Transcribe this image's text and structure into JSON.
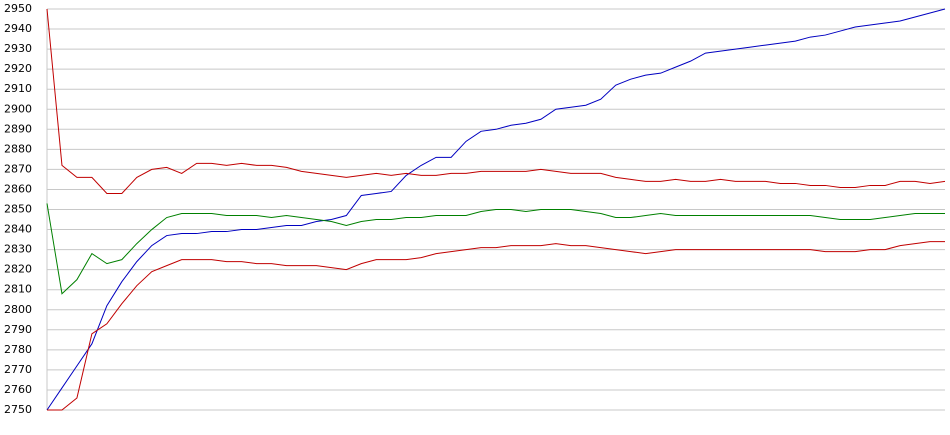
{
  "chart_data": {
    "type": "line",
    "ylim": [
      2750,
      2950
    ],
    "yticks": [
      2750,
      2760,
      2770,
      2780,
      2790,
      2800,
      2810,
      2820,
      2830,
      2840,
      2850,
      2860,
      2870,
      2880,
      2890,
      2900,
      2910,
      2920,
      2930,
      2940,
      2950
    ],
    "grid": true,
    "series": [
      {
        "color": "#0000c0",
        "values": [
          2750,
          2761,
          2772,
          2783,
          2802,
          2814,
          2824,
          2832,
          2837,
          2838,
          2838,
          2839,
          2839,
          2840,
          2840,
          2841,
          2842,
          2842,
          2844,
          2845,
          2847,
          2857,
          2858,
          2859,
          2867,
          2872,
          2876,
          2876,
          2884,
          2889,
          2890,
          2892,
          2893,
          2895,
          2900,
          2901,
          2902,
          2905,
          2912,
          2915,
          2917,
          2918,
          2921,
          2924,
          2928,
          2929,
          2930,
          2931,
          2932,
          2933,
          2934,
          2936,
          2937,
          2939,
          2941,
          2942,
          2943,
          2944,
          2946,
          2948,
          2950
        ]
      },
      {
        "color": "#c00000",
        "values": [
          2950,
          2872,
          2866,
          2866,
          2858,
          2858,
          2866,
          2870,
          2871,
          2868,
          2873,
          2873,
          2872,
          2873,
          2872,
          2872,
          2871,
          2869,
          2868,
          2867,
          2866,
          2867,
          2868,
          2867,
          2868,
          2867,
          2867,
          2868,
          2868,
          2869,
          2869,
          2869,
          2869,
          2870,
          2869,
          2868,
          2868,
          2868,
          2866,
          2865,
          2864,
          2864,
          2865,
          2864,
          2864,
          2865,
          2864,
          2864,
          2864,
          2863,
          2863,
          2862,
          2862,
          2861,
          2861,
          2862,
          2862,
          2864,
          2864,
          2863,
          2864
        ]
      },
      {
        "color": "#008000",
        "values": [
          2853,
          2808,
          2815,
          2828,
          2823,
          2825,
          2833,
          2840,
          2846,
          2848,
          2848,
          2848,
          2847,
          2847,
          2847,
          2846,
          2847,
          2846,
          2845,
          2844,
          2842,
          2844,
          2845,
          2845,
          2846,
          2846,
          2847,
          2847,
          2847,
          2849,
          2850,
          2850,
          2849,
          2850,
          2850,
          2850,
          2849,
          2848,
          2846,
          2846,
          2847,
          2848,
          2847,
          2847,
          2847,
          2847,
          2847,
          2847,
          2847,
          2847,
          2847,
          2847,
          2846,
          2845,
          2845,
          2845,
          2846,
          2847,
          2848,
          2848,
          2848
        ]
      },
      {
        "color": "#c00000",
        "values": [
          2750,
          2750,
          2756,
          2788,
          2793,
          2803,
          2812,
          2819,
          2822,
          2825,
          2825,
          2825,
          2824,
          2824,
          2823,
          2823,
          2822,
          2822,
          2822,
          2821,
          2820,
          2823,
          2825,
          2825,
          2825,
          2826,
          2828,
          2829,
          2830,
          2831,
          2831,
          2832,
          2832,
          2832,
          2833,
          2832,
          2832,
          2831,
          2830,
          2829,
          2828,
          2829,
          2830,
          2830,
          2830,
          2830,
          2830,
          2830,
          2830,
          2830,
          2830,
          2830,
          2829,
          2829,
          2829,
          2830,
          2830,
          2832,
          2833,
          2834,
          2834
        ]
      }
    ]
  }
}
